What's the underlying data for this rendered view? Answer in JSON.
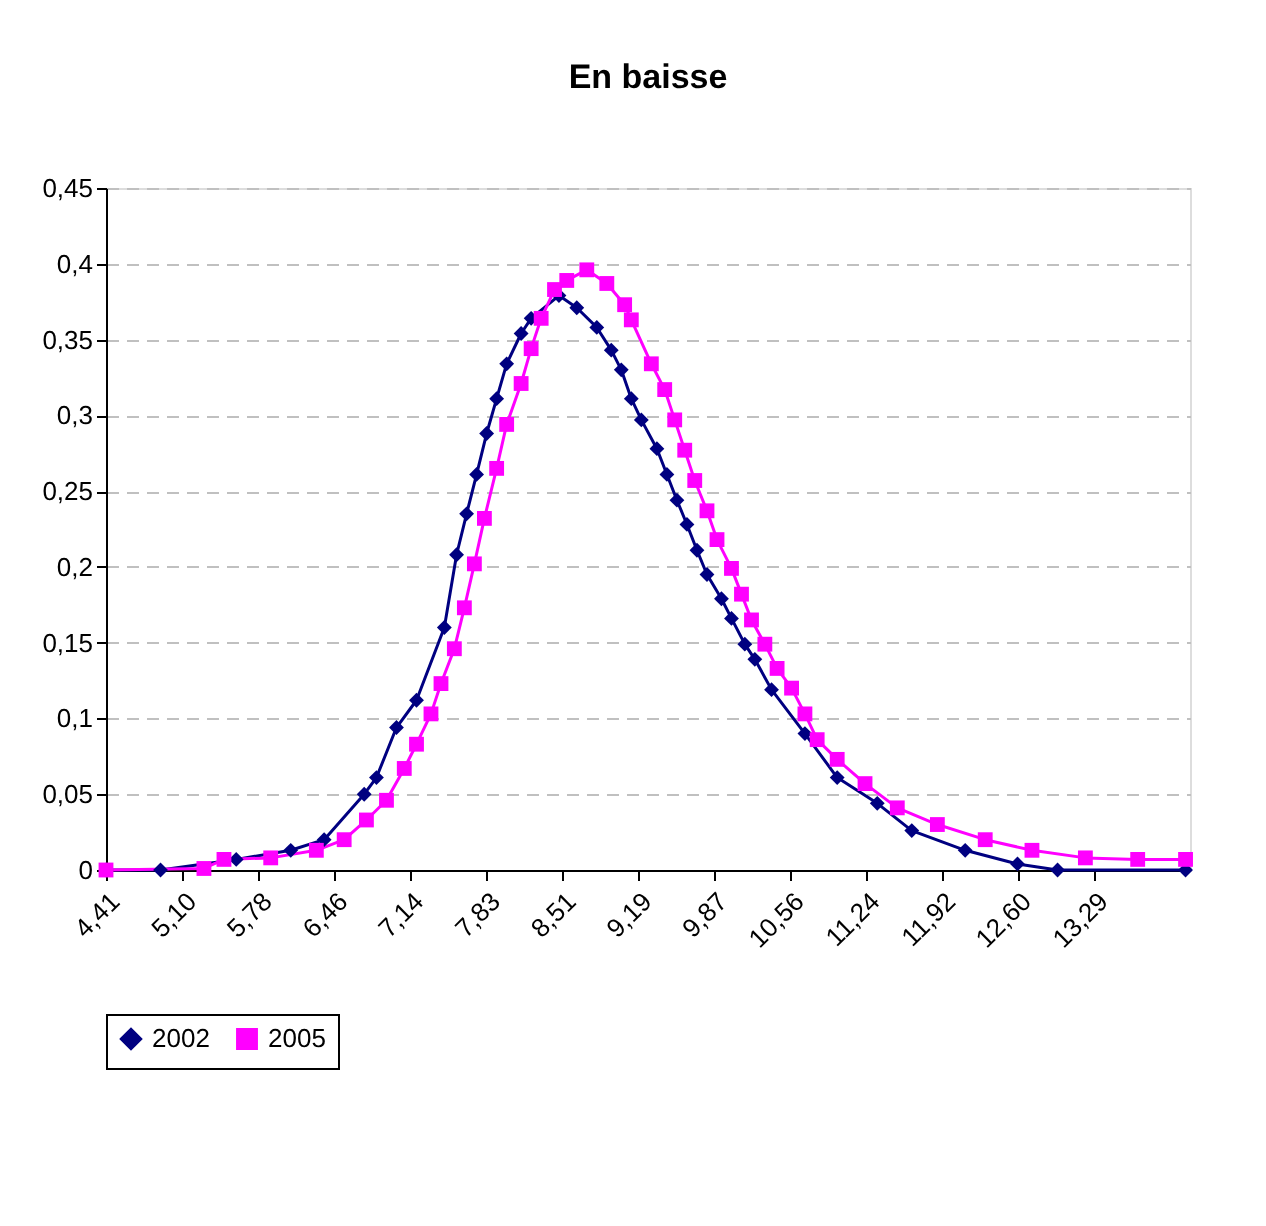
{
  "chart_data": {
    "type": "line",
    "title": "En baisse",
    "xlim": [
      4.41,
      14.15
    ],
    "xticks": [
      {
        "value": 4.41,
        "label": "4,41"
      },
      {
        "value": 5.1,
        "label": "5,10"
      },
      {
        "value": 5.78,
        "label": "5,78"
      },
      {
        "value": 6.46,
        "label": "6,46"
      },
      {
        "value": 7.14,
        "label": "7,14"
      },
      {
        "value": 7.83,
        "label": "7,83"
      },
      {
        "value": 8.51,
        "label": "8,51"
      },
      {
        "value": 9.19,
        "label": "9,19"
      },
      {
        "value": 9.87,
        "label": "9,87"
      },
      {
        "value": 10.56,
        "label": "10,56"
      },
      {
        "value": 11.24,
        "label": "11,24"
      },
      {
        "value": 11.92,
        "label": "11,92"
      },
      {
        "value": 12.6,
        "label": "12,60"
      },
      {
        "value": 13.29,
        "label": "13,29"
      }
    ],
    "ylim": [
      0,
      0.45
    ],
    "yticks": [
      0,
      {
        "value": 0.05,
        "label": "0,05"
      },
      {
        "value": 0.1,
        "label": "0,1"
      },
      {
        "value": 0.15,
        "label": "0,15"
      },
      {
        "value": 0.2,
        "label": "0,2"
      },
      {
        "value": 0.25,
        "label": "0,25"
      },
      {
        "value": 0.3,
        "label": "0,3"
      },
      {
        "value": 0.35,
        "label": "0,35"
      },
      {
        "value": 0.4,
        "label": "0,4"
      },
      {
        "value": 0.45,
        "label": "0,45"
      }
    ],
    "grid": "y",
    "legend": "bottom",
    "line_style": "solid",
    "series": [
      {
        "name": "2002",
        "color": "#000080",
        "marker": "diamond",
        "x": [
          4.41,
          4.9,
          5.58,
          6.07,
          6.37,
          6.73,
          6.84,
          7.02,
          7.2,
          7.45,
          7.56,
          7.65,
          7.74,
          7.83,
          7.92,
          8.01,
          8.14,
          8.23,
          8.48,
          8.64,
          8.82,
          8.95,
          9.04,
          9.13,
          9.22,
          9.36,
          9.45,
          9.54,
          9.63,
          9.72,
          9.81,
          9.94,
          10.03,
          10.15,
          10.24,
          10.39,
          10.69,
          10.98,
          11.34,
          11.65,
          12.13,
          12.6,
          12.96,
          14.11
        ],
        "values": [
          0,
          0,
          0.007,
          0.013,
          0.02,
          0.05,
          0.061,
          0.094,
          0.112,
          0.16,
          0.208,
          0.235,
          0.261,
          0.288,
          0.311,
          0.334,
          0.354,
          0.364,
          0.379,
          0.371,
          0.358,
          0.343,
          0.33,
          0.311,
          0.297,
          0.278,
          0.261,
          0.244,
          0.228,
          0.211,
          0.195,
          0.179,
          0.166,
          0.149,
          0.139,
          0.119,
          0.09,
          0.061,
          0.044,
          0.026,
          0.013,
          0.004,
          0,
          0
        ]
      },
      {
        "name": "2005",
        "color": "#ff00ff",
        "marker": "square",
        "x": [
          4.41,
          5.29,
          5.47,
          5.89,
          6.3,
          6.55,
          6.75,
          6.93,
          7.09,
          7.2,
          7.33,
          7.42,
          7.54,
          7.63,
          7.72,
          7.81,
          7.92,
          8.01,
          8.14,
          8.23,
          8.32,
          8.44,
          8.55,
          8.73,
          8.91,
          9.07,
          9.13,
          9.31,
          9.43,
          9.52,
          9.61,
          9.7,
          9.81,
          9.9,
          10.03,
          10.12,
          10.21,
          10.33,
          10.44,
          10.57,
          10.69,
          10.8,
          10.98,
          11.23,
          11.52,
          11.88,
          12.31,
          12.73,
          13.21,
          13.68,
          14.11
        ],
        "values": [
          0,
          0.001,
          0.007,
          0.008,
          0.013,
          0.02,
          0.033,
          0.046,
          0.067,
          0.083,
          0.103,
          0.123,
          0.146,
          0.173,
          0.202,
          0.232,
          0.265,
          0.294,
          0.321,
          0.344,
          0.364,
          0.383,
          0.389,
          0.396,
          0.387,
          0.373,
          0.363,
          0.334,
          0.317,
          0.297,
          0.277,
          0.257,
          0.237,
          0.218,
          0.199,
          0.182,
          0.165,
          0.149,
          0.133,
          0.12,
          0.103,
          0.086,
          0.073,
          0.057,
          0.041,
          0.03,
          0.02,
          0.013,
          0.008,
          0.007,
          0.007
        ]
      }
    ]
  }
}
